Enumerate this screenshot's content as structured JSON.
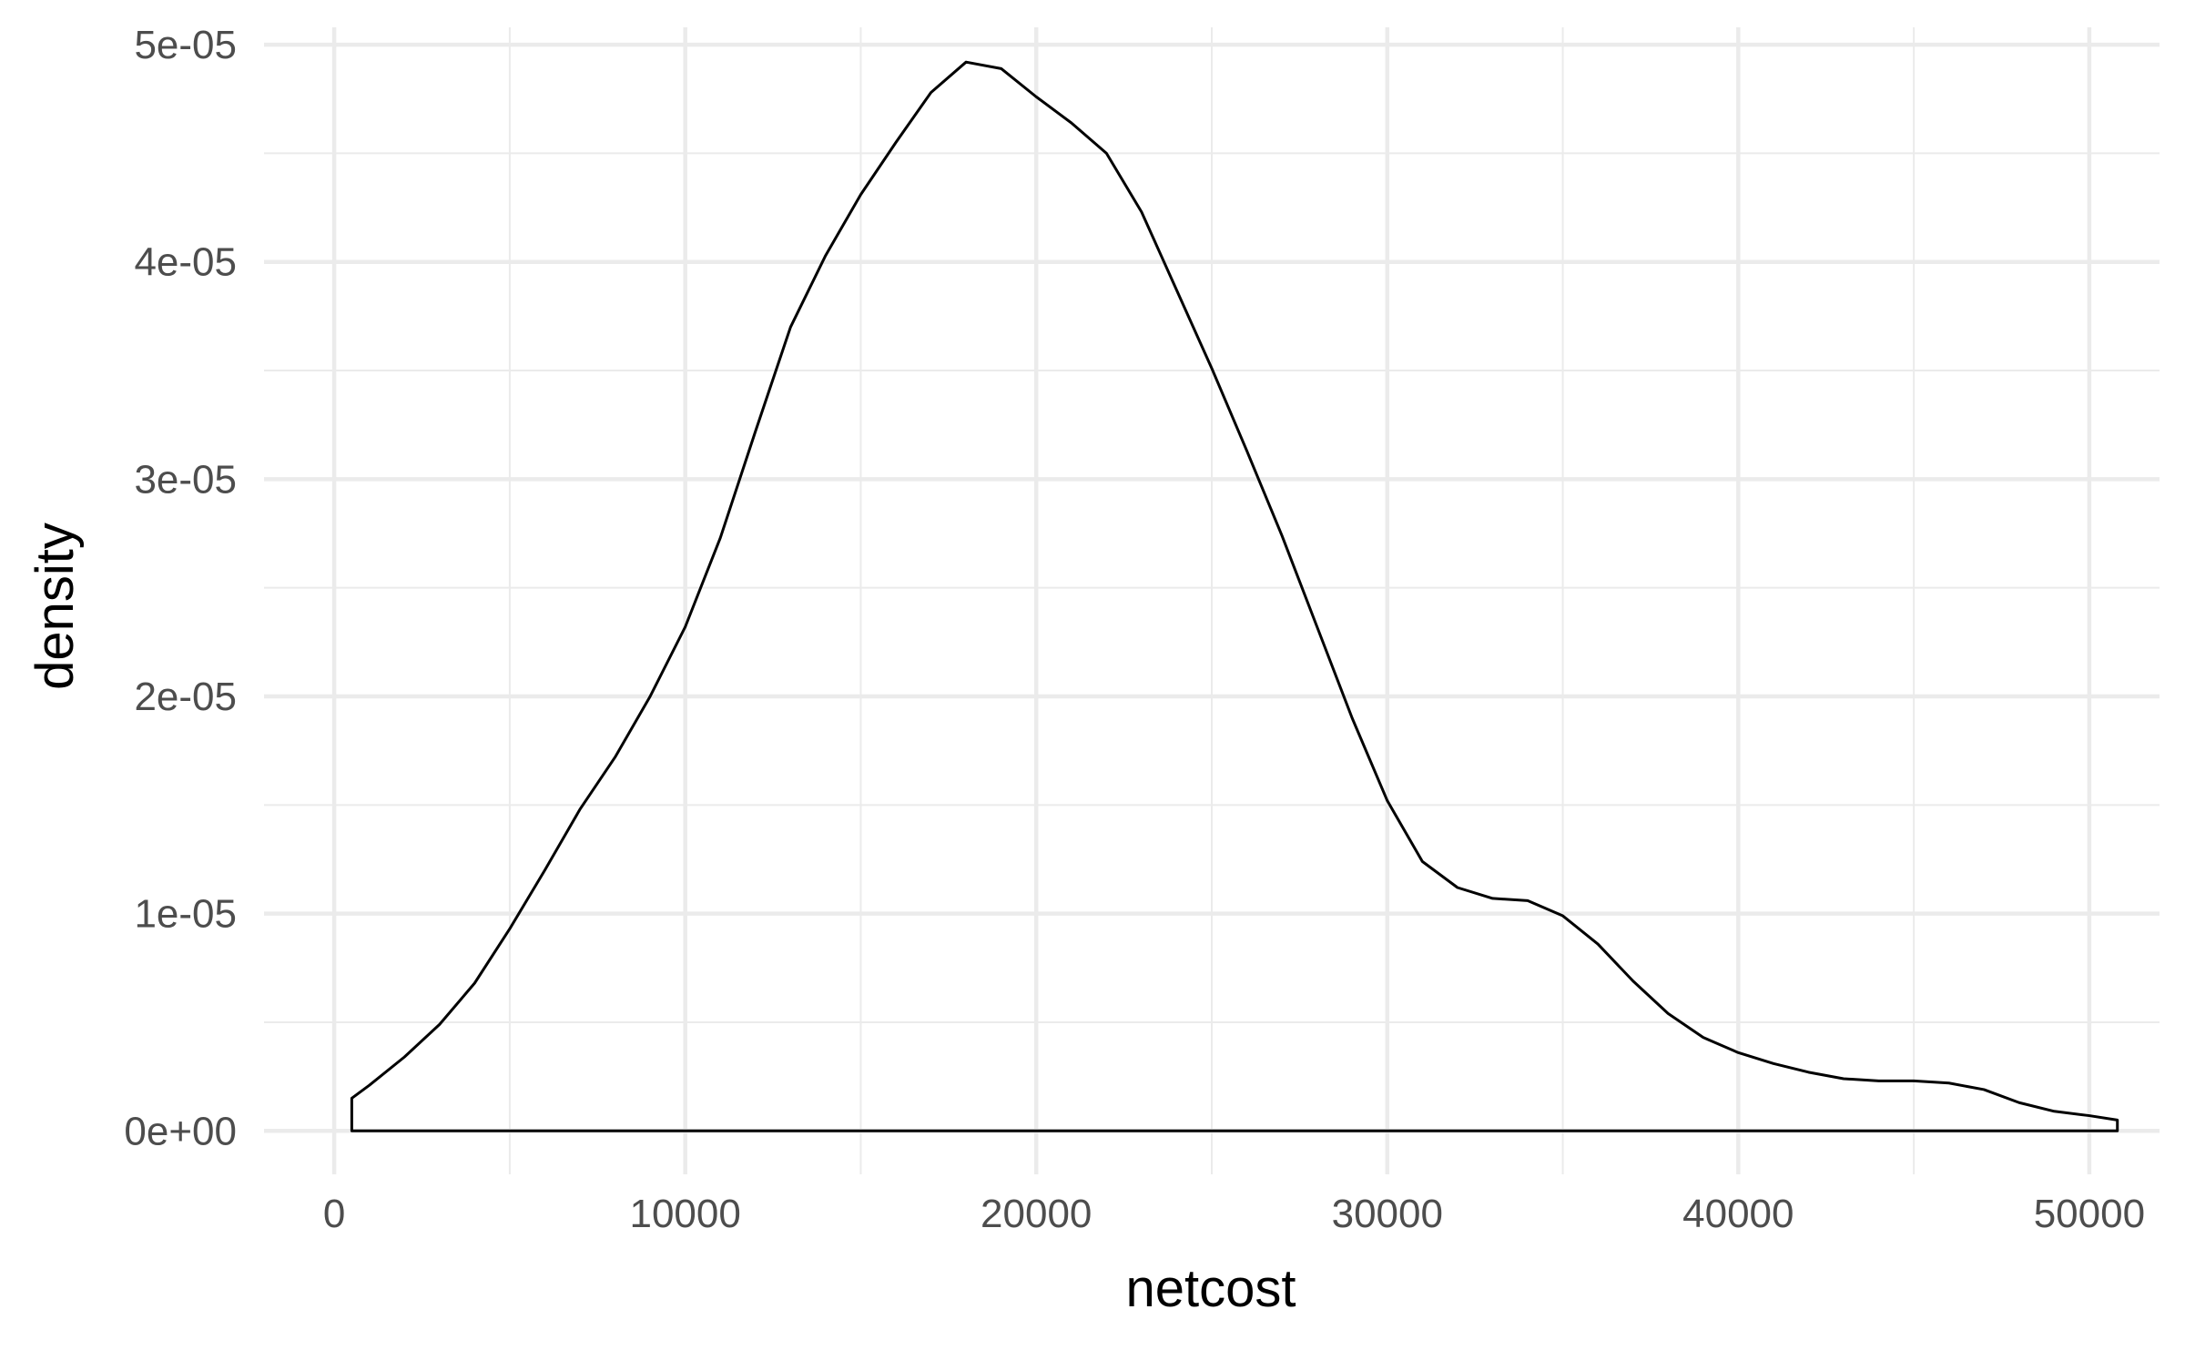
{
  "chart_data": {
    "type": "area",
    "title": "",
    "xlabel": "netcost",
    "ylabel": "density",
    "xlim": [
      -2000,
      52000
    ],
    "ylim": [
      -2e-06,
      5.08e-05
    ],
    "x_ticks": [
      0,
      10000,
      20000,
      30000,
      40000,
      50000
    ],
    "x_tick_labels": [
      "0",
      "10000",
      "20000",
      "30000",
      "40000",
      "50000"
    ],
    "x_minor_ticks": [
      5000,
      15000,
      25000,
      35000,
      45000
    ],
    "y_ticks": [
      0,
      1e-05,
      2e-05,
      3e-05,
      4e-05,
      5e-05
    ],
    "y_tick_labels": [
      "0e+00",
      "1e-05",
      "2e-05",
      "3e-05",
      "4e-05",
      "5e-05"
    ],
    "y_minor_ticks": [
      5e-06,
      1.5e-05,
      2.5e-05,
      3.5e-05,
      4.5e-05
    ],
    "grid": true,
    "legend": "none",
    "colors": {
      "line": "#000000",
      "fill": "none",
      "grid": "#ebebeb",
      "background": "#ffffff"
    },
    "series": [
      {
        "x": [
          500,
          1000,
          2000,
          3000,
          4000,
          5000,
          6000,
          7000,
          8000,
          9000,
          10000,
          11000,
          12000,
          13000,
          14000,
          15000,
          16000,
          17000,
          18000,
          19000,
          20000,
          21000,
          22000,
          23000,
          24000,
          25000,
          26000,
          27000,
          28000,
          29000,
          30000,
          31000,
          32000,
          33000,
          34000,
          35000,
          36000,
          37000,
          38000,
          39000,
          40000,
          41000,
          42000,
          43000,
          44000,
          45000,
          46000,
          47000,
          48000,
          49000,
          50000,
          50800
        ],
        "y": [
          1.5e-06,
          2.1e-06,
          3.4e-06,
          4.9e-06,
          6.8e-06,
          9.3e-06,
          1.2e-05,
          1.48e-05,
          1.72e-05,
          2e-05,
          2.32e-05,
          2.73e-05,
          3.22e-05,
          3.7e-05,
          4.03e-05,
          4.31e-05,
          4.55e-05,
          4.78e-05,
          4.92e-05,
          4.89e-05,
          4.76e-05,
          4.64e-05,
          4.5e-05,
          4.23e-05,
          3.87e-05,
          3.51e-05,
          3.13e-05,
          2.74e-05,
          2.32e-05,
          1.9e-05,
          1.52e-05,
          1.24e-05,
          1.12e-05,
          1.07e-05,
          1.06e-05,
          9.9e-06,
          8.6e-06,
          6.9e-06,
          5.4e-06,
          4.3e-06,
          3.6e-06,
          3.1e-06,
          2.7e-06,
          2.4e-06,
          2.3e-06,
          2.3e-06,
          2.2e-06,
          1.9e-06,
          1.3e-06,
          9e-07,
          7e-07,
          5e-07
        ]
      }
    ]
  }
}
